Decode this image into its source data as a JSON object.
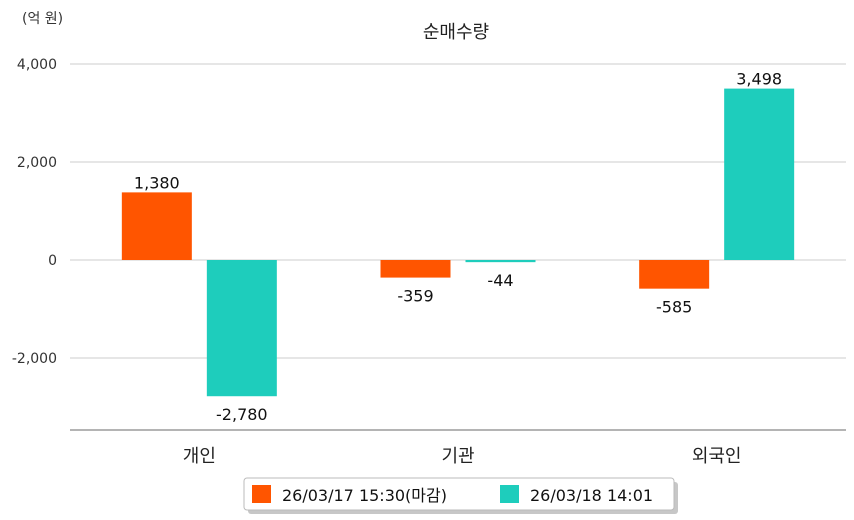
{
  "chart_data": {
    "type": "bar",
    "title": "순매수량",
    "unit_label": "(억 원)",
    "categories": [
      "개인",
      "기관",
      "외국인"
    ],
    "series": [
      {
        "name": "26/03/17 15:30(마감)",
        "color": "#ff5500",
        "values": [
          1380,
          -359,
          -585
        ],
        "labels": [
          "1,380",
          "-359",
          "-585"
        ]
      },
      {
        "name": "26/03/18 14:01",
        "color": "#1ecdbc",
        "values": [
          -2780,
          -44,
          3498
        ],
        "labels": [
          "-2,780",
          "-44",
          "3,498"
        ]
      }
    ],
    "yticks": [
      4000,
      2000,
      0,
      -2000
    ],
    "ytick_labels": [
      "4,000",
      "2,000",
      "0",
      "-2,000"
    ],
    "ylim": [
      -3450,
      4000
    ],
    "grid": true,
    "legend_position": "bottom"
  }
}
